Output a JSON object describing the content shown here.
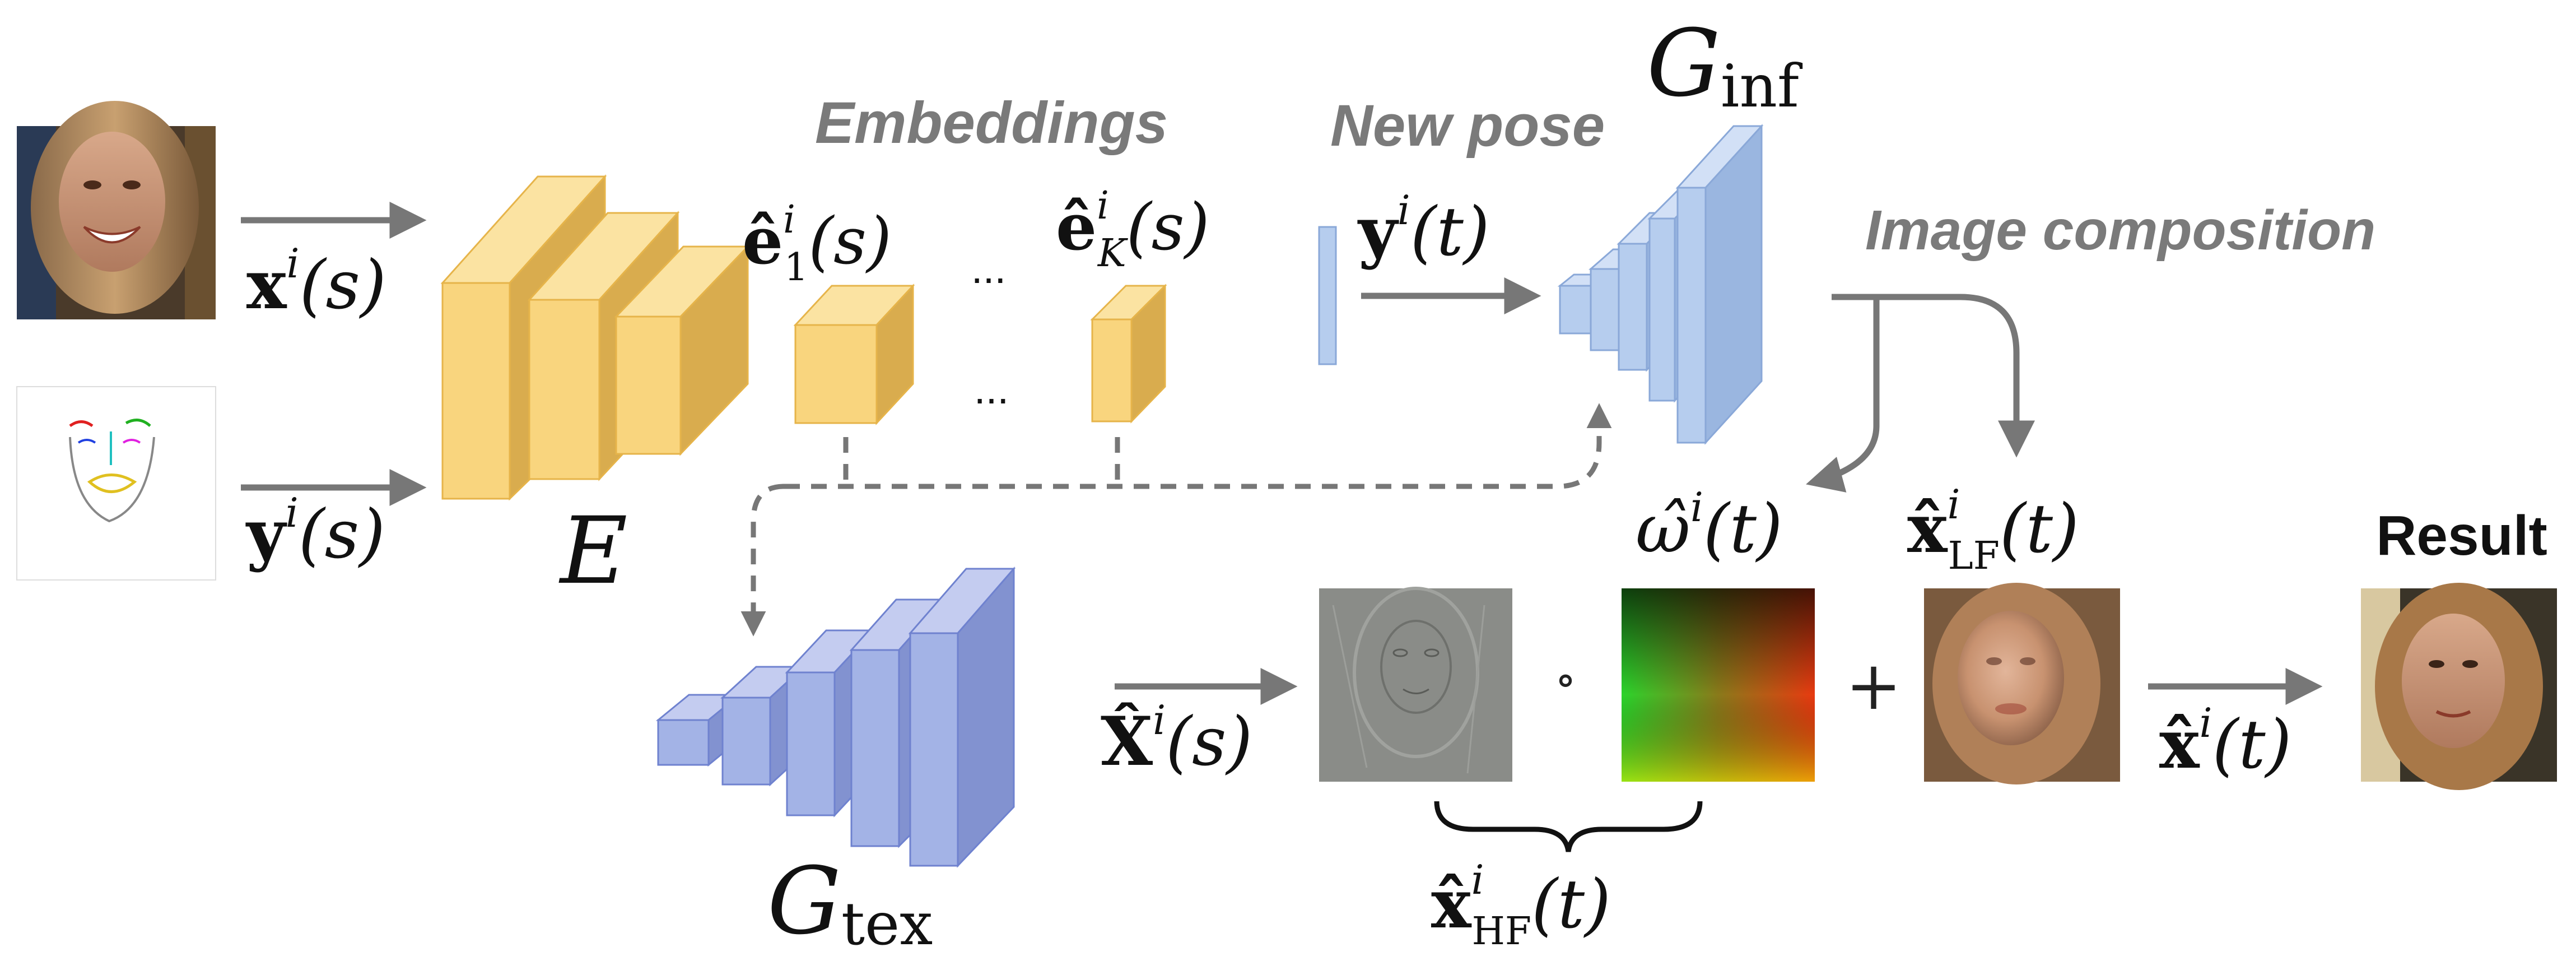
{
  "labels": {
    "embeddings": "Embeddings",
    "new_pose": "New pose",
    "image_composition": "Image composition",
    "result": "Result",
    "ellipsis": "..."
  },
  "math": {
    "x_s": {
      "base": "x",
      "sup": "i",
      "arg": "(s)"
    },
    "y_s": {
      "base": "y",
      "sup": "i",
      "arg": "(s)"
    },
    "E": {
      "base": "E"
    },
    "e1": {
      "base": "ê",
      "sup": "i",
      "sub": "1",
      "arg": "(s)"
    },
    "eK": {
      "base": "ê",
      "sup": "i",
      "sub": "K",
      "arg": "(s)"
    },
    "y_t": {
      "base": "y",
      "sup": "i",
      "arg": "(t)"
    },
    "G_inf": {
      "base": "G",
      "sub": "inf"
    },
    "G_tex": {
      "base": "G",
      "sub": "tex"
    },
    "X_s": {
      "base": "X̂",
      "sup": "i",
      "arg": "(s)"
    },
    "omega_t": {
      "base": "ω̂",
      "sup": "i",
      "arg": "(t)"
    },
    "x_LF": {
      "base": "x̂",
      "sup": "i",
      "sub": "LF",
      "arg": "(t)"
    },
    "x_HF": {
      "base": "x̂",
      "sup": "i",
      "sub": "HF",
      "arg": "(t)"
    },
    "x_t": {
      "base": "x̂",
      "sup": "i",
      "arg": "(t)"
    },
    "circ": {
      "base": "∘"
    },
    "plus": {
      "base": "+"
    }
  },
  "colors": {
    "encoder_yellow": "#f9d57e",
    "generator_blue": "#b6cdee",
    "texture_blue": "#a3b3e6",
    "arrow_gray": "#777777",
    "label_gray": "#7a7a7a"
  },
  "icons": {
    "source_photo": "woman-smiling-photo",
    "landmark_sketch": "face-landmark-sketch",
    "hf_texture": "high-frequency-texture",
    "warp_field": "warping-field-gradient",
    "lf_photo": "blurry-face-photo",
    "result_photo": "result-face-photo"
  }
}
